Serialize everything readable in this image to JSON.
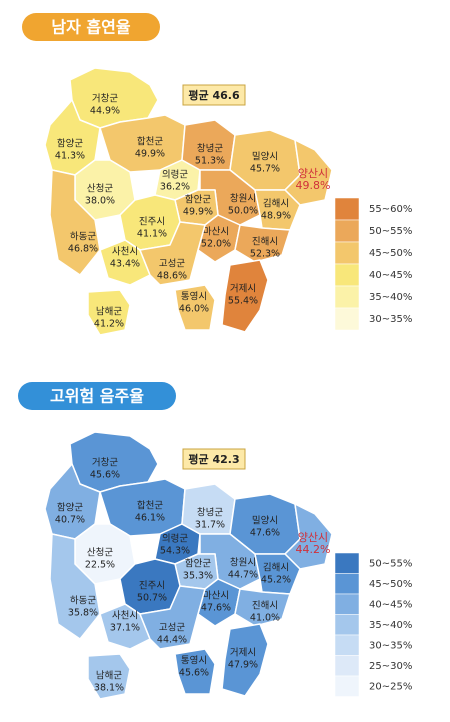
{
  "panels": [
    {
      "title": "남자 흡연율",
      "average": "평균 46.6",
      "legend": [
        {
          "label": "55~60%",
          "color": "#e0843c"
        },
        {
          "label": "50~55%",
          "color": "#eba85a"
        },
        {
          "label": "45~50%",
          "color": "#f3c76c"
        },
        {
          "label": "40~45%",
          "color": "#f8e77a"
        },
        {
          "label": "35~40%",
          "color": "#fbf2a8"
        },
        {
          "label": "30~35%",
          "color": "#fdf9d9"
        }
      ],
      "regions": [
        {
          "name": "거창군",
          "value": "44.9%",
          "color": "#f8e77a"
        },
        {
          "name": "함양군",
          "value": "41.3%",
          "color": "#f8e77a"
        },
        {
          "name": "합천군",
          "value": "49.9%",
          "color": "#f3c76c"
        },
        {
          "name": "산청군",
          "value": "38.0%",
          "color": "#fbf2a8"
        },
        {
          "name": "하동군",
          "value": "46.8%",
          "color": "#f3c76c"
        },
        {
          "name": "의령군",
          "value": "36.2%",
          "color": "#fbf2a8"
        },
        {
          "name": "창녕군",
          "value": "51.3%",
          "color": "#eba85a"
        },
        {
          "name": "밀양시",
          "value": "45.7%",
          "color": "#f3c76c"
        },
        {
          "name": "양산시",
          "value": "49.8%",
          "color": "#f3c76c"
        },
        {
          "name": "창원시",
          "value": "50.0%",
          "color": "#eba85a"
        },
        {
          "name": "김해시",
          "value": "48.9%",
          "color": "#f3c76c"
        },
        {
          "name": "함안군",
          "value": "49.9%",
          "color": "#f3c76c"
        },
        {
          "name": "진주시",
          "value": "41.1%",
          "color": "#f8e77a"
        },
        {
          "name": "마산시",
          "value": "52.0%",
          "color": "#eba85a"
        },
        {
          "name": "진해시",
          "value": "52.3%",
          "color": "#eba85a"
        },
        {
          "name": "사천시",
          "value": "43.4%",
          "color": "#f8e77a"
        },
        {
          "name": "고성군",
          "value": "48.6%",
          "color": "#f3c76c"
        },
        {
          "name": "통영시",
          "value": "46.0%",
          "color": "#f3c76c"
        },
        {
          "name": "거제시",
          "value": "55.4%",
          "color": "#e0843c"
        },
        {
          "name": "남해군",
          "value": "41.2%",
          "color": "#f8e77a"
        }
      ]
    },
    {
      "title": "고위험 음주율",
      "average": "평균 42.3",
      "legend": [
        {
          "label": "50~55%",
          "color": "#3a78c0"
        },
        {
          "label": "45~50%",
          "color": "#5a95d5"
        },
        {
          "label": "40~45%",
          "color": "#80afe2"
        },
        {
          "label": "35~40%",
          "color": "#a4c7ec"
        },
        {
          "label": "30~35%",
          "color": "#c6dcf4"
        },
        {
          "label": "25~30%",
          "color": "#dde9f8"
        },
        {
          "label": "20~25%",
          "color": "#eff5fc"
        }
      ],
      "regions": [
        {
          "name": "거창군",
          "value": "45.6%",
          "color": "#5a95d5"
        },
        {
          "name": "함양군",
          "value": "40.7%",
          "color": "#80afe2"
        },
        {
          "name": "합천군",
          "value": "46.1%",
          "color": "#5a95d5"
        },
        {
          "name": "산청군",
          "value": "22.5%",
          "color": "#eff5fc"
        },
        {
          "name": "하동군",
          "value": "35.8%",
          "color": "#a4c7ec"
        },
        {
          "name": "의령군",
          "value": "54.3%",
          "color": "#3a78c0"
        },
        {
          "name": "창녕군",
          "value": "31.7%",
          "color": "#c6dcf4"
        },
        {
          "name": "밀양시",
          "value": "47.6%",
          "color": "#5a95d5"
        },
        {
          "name": "양산시",
          "value": "44.2%",
          "color": "#80afe2"
        },
        {
          "name": "창원시",
          "value": "44.7%",
          "color": "#80afe2"
        },
        {
          "name": "김해시",
          "value": "45.2%",
          "color": "#5a95d5"
        },
        {
          "name": "함안군",
          "value": "35.3%",
          "color": "#a4c7ec"
        },
        {
          "name": "진주시",
          "value": "50.7%",
          "color": "#3a78c0"
        },
        {
          "name": "마산시",
          "value": "47.6%",
          "color": "#5a95d5"
        },
        {
          "name": "진해시",
          "value": "41.0%",
          "color": "#80afe2"
        },
        {
          "name": "사천시",
          "value": "37.1%",
          "color": "#a4c7ec"
        },
        {
          "name": "고성군",
          "value": "44.4%",
          "color": "#80afe2"
        },
        {
          "name": "통영시",
          "value": "45.6%",
          "color": "#5a95d5"
        },
        {
          "name": "거제시",
          "value": "47.9%",
          "color": "#5a95d5"
        },
        {
          "name": "남해군",
          "value": "38.1%",
          "color": "#a4c7ec"
        }
      ]
    }
  ]
}
